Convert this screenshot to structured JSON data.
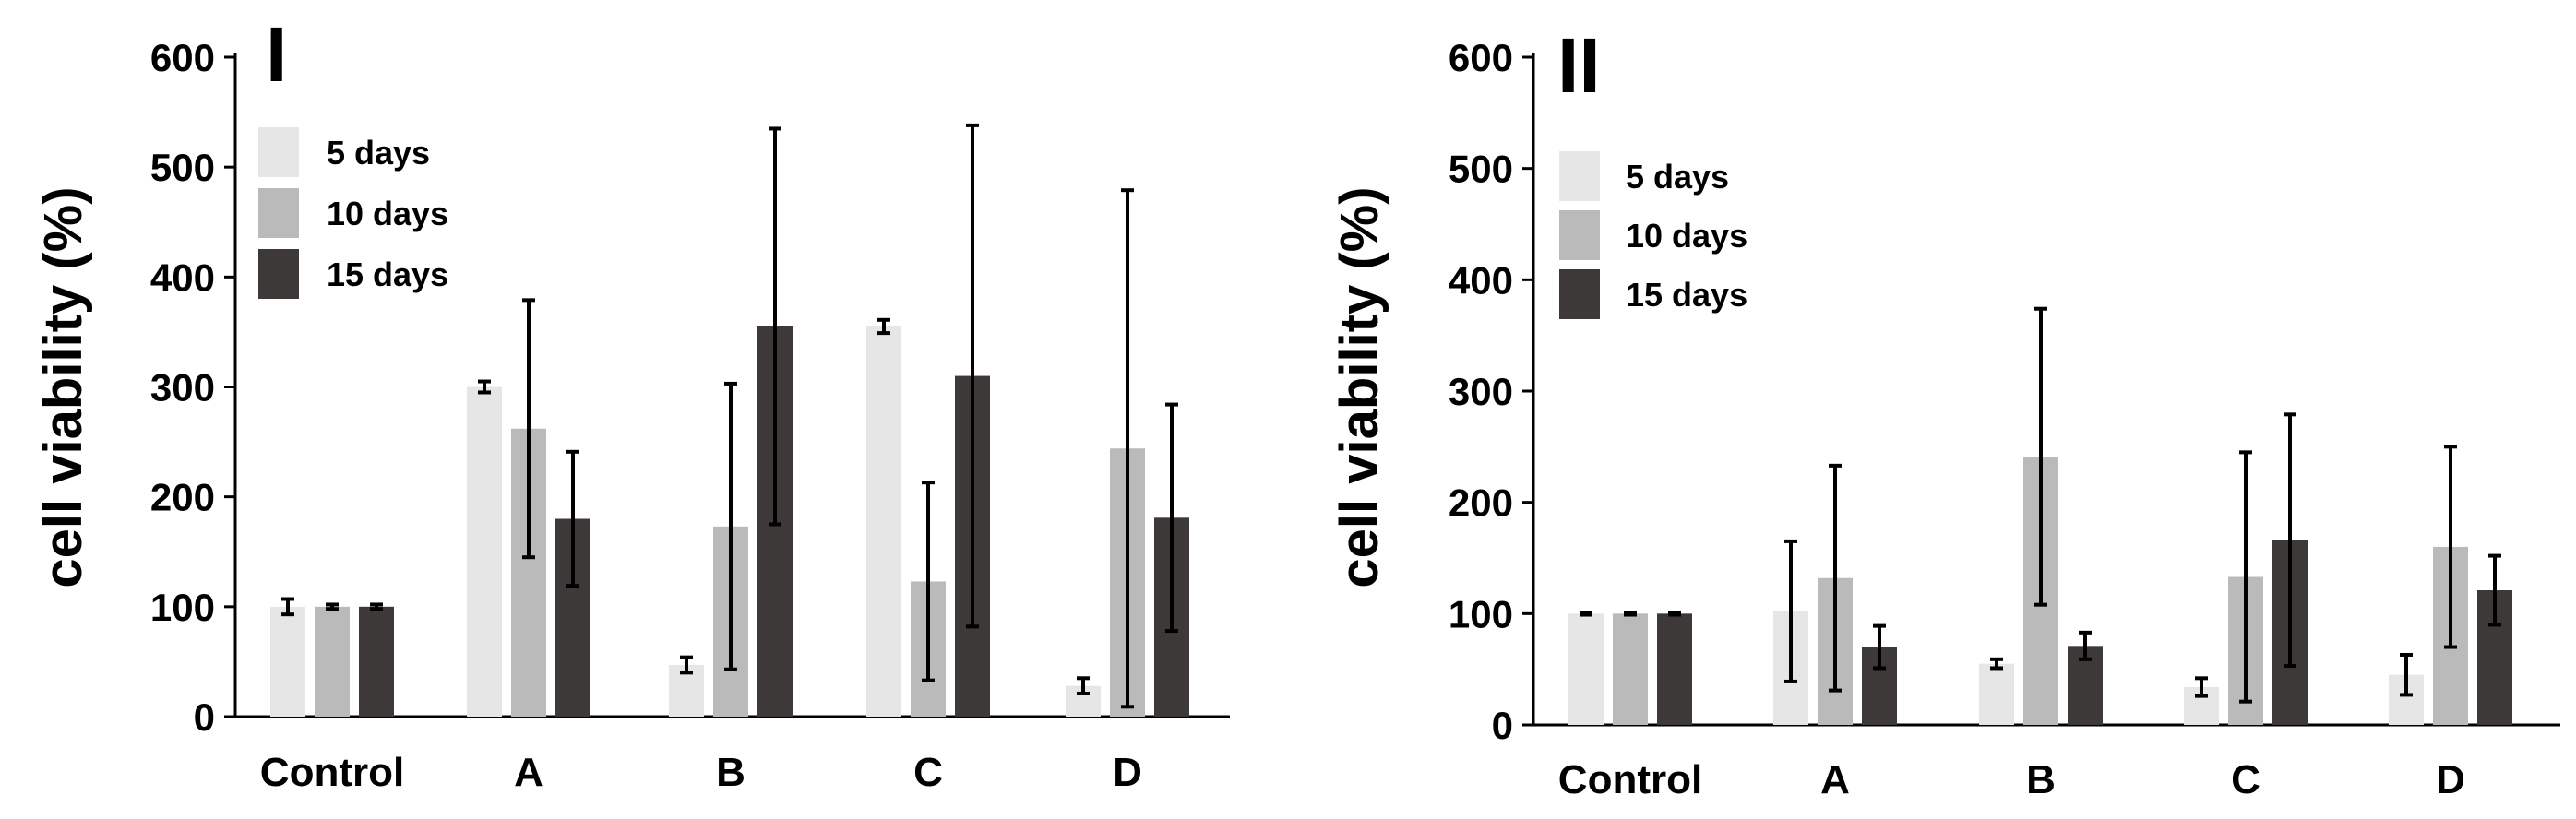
{
  "chart_data": [
    {
      "type": "bar",
      "title": "I",
      "xlabel": "",
      "ylabel": "cell viability (%)",
      "ylim": [
        0,
        600
      ],
      "yticks": [
        0,
        100,
        200,
        300,
        400,
        500,
        600
      ],
      "categories": [
        "Control",
        "A",
        "B",
        "C",
        "D"
      ],
      "legend_position": "top-left",
      "series": [
        {
          "name": "5 days",
          "color": "#e6e6e6",
          "values": [
            100,
            300,
            47,
            355,
            28
          ],
          "errors": [
            7,
            5,
            7,
            6,
            7
          ]
        },
        {
          "name": "10 days",
          "color": "#bababa",
          "values": [
            100,
            262,
            173,
            123,
            244
          ],
          "errors": [
            2,
            117,
            130,
            90,
            235
          ]
        },
        {
          "name": "15 days",
          "color": "#3d3939",
          "values": [
            100,
            180,
            355,
            310,
            181
          ],
          "errors": [
            2,
            61,
            180,
            228,
            103
          ]
        }
      ]
    },
    {
      "type": "bar",
      "title": "II",
      "xlabel": "",
      "ylabel": "cell viability (%)",
      "ylim": [
        0,
        600
      ],
      "yticks": [
        0,
        100,
        200,
        300,
        400,
        500,
        600
      ],
      "categories": [
        "Control",
        "A",
        "B",
        "C",
        "D"
      ],
      "legend_position": "top-left",
      "series": [
        {
          "name": "5 days",
          "color": "#e6e6e6",
          "values": [
            100,
            102,
            55,
            34,
            45
          ],
          "errors": [
            1,
            63,
            4,
            8,
            18
          ]
        },
        {
          "name": "10 days",
          "color": "#bababa",
          "values": [
            100,
            132,
            241,
            133,
            160
          ],
          "errors": [
            1,
            101,
            133,
            112,
            90
          ]
        },
        {
          "name": "15 days",
          "color": "#3d3939",
          "values": [
            100,
            70,
            71,
            166,
            121
          ],
          "errors": [
            1,
            19,
            12,
            113,
            31
          ]
        }
      ]
    }
  ]
}
